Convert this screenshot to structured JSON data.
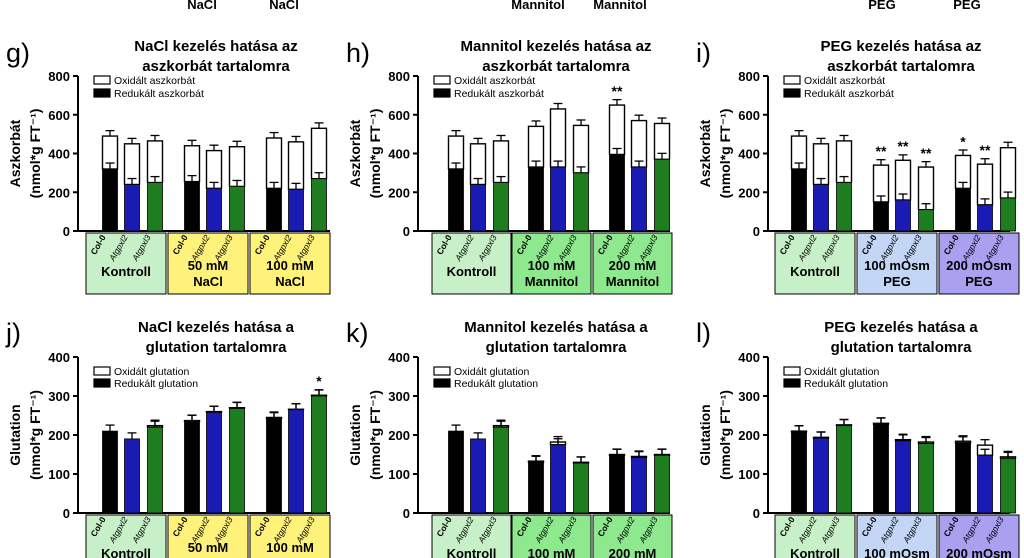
{
  "top_strip": [
    "NaCl",
    "NaCl",
    "Mannitol",
    "Mannitol",
    "PEG",
    "PEG"
  ],
  "legend_labels": {
    "asc_ox": "Oxidált aszkorbát",
    "asc_red": "Redukált aszkorbát",
    "glu_ox": "Oxidált glutation",
    "glu_red": "Redukált glutation"
  },
  "genotypes": [
    "Col-0",
    "Atgpxl2",
    "Atgpxl3"
  ],
  "colors": {
    "col0": "#000000",
    "atgpxl2": "#1a1ab4",
    "atgpxl3": "#1e7d1e",
    "oxidized": "#ffffff",
    "control_box": "#c8f0c8",
    "nacl_box": "#fff27a",
    "mannitol_box": "#8ee88e",
    "peg100_box": "#c3d6f5",
    "peg200_box": "#a9a1f0"
  },
  "chart_data": [
    {
      "id": "g",
      "type": "bar",
      "stacked": true,
      "panel_label": "g)",
      "title": [
        "NaCl kezelés hatása az",
        "aszkorbát tartalomra"
      ],
      "ylabel": [
        "Aszkorbát",
        "(nmol*g FT⁻¹)"
      ],
      "ylim": [
        0,
        800
      ],
      "yticks": [
        "0",
        "200",
        "400",
        "600",
        "800"
      ],
      "legend": [
        "asc_ox",
        "asc_red"
      ],
      "groups": [
        {
          "label": [
            "Kontroll"
          ],
          "color": "control_box"
        },
        {
          "label": [
            "50 mM",
            "NaCl"
          ],
          "color": "nacl_box"
        },
        {
          "label": [
            "100 mM",
            "NaCl"
          ],
          "color": "nacl_box"
        }
      ],
      "reduced": [
        [
          320,
          240,
          250
        ],
        [
          255,
          220,
          230
        ],
        [
          220,
          215,
          270
        ]
      ],
      "total": [
        [
          490,
          450,
          465
        ],
        [
          440,
          415,
          435
        ],
        [
          480,
          460,
          530
        ]
      ],
      "annotations": [
        [
          [],
          [],
          []
        ],
        [
          [],
          [],
          []
        ],
        [
          [],
          [],
          []
        ]
      ]
    },
    {
      "id": "h",
      "type": "bar",
      "stacked": true,
      "panel_label": "h)",
      "title": [
        "Mannitol kezelés hatása az",
        "aszkorbát tartalomra"
      ],
      "ylabel": [
        "Aszkorbát",
        "(nmol*g FT⁻¹)"
      ],
      "ylim": [
        0,
        800
      ],
      "yticks": [
        "0",
        "200",
        "400",
        "600",
        "800"
      ],
      "legend": [
        "asc_ox",
        "asc_red"
      ],
      "groups": [
        {
          "label": [
            "Kontroll"
          ],
          "color": "control_box"
        },
        {
          "label": [
            "100 mM",
            "Mannitol"
          ],
          "color": "mannitol_box"
        },
        {
          "label": [
            "200 mM",
            "Mannitol"
          ],
          "color": "mannitol_box"
        }
      ],
      "reduced": [
        [
          320,
          240,
          250
        ],
        [
          330,
          330,
          300
        ],
        [
          395,
          330,
          370
        ]
      ],
      "total": [
        [
          490,
          450,
          465
        ],
        [
          540,
          630,
          545
        ],
        [
          650,
          570,
          555
        ]
      ],
      "annotations": [
        [
          [],
          [],
          []
        ],
        [
          [],
          [],
          []
        ],
        [
          [
            "**"
          ],
          [],
          []
        ]
      ]
    },
    {
      "id": "i",
      "type": "bar",
      "stacked": true,
      "panel_label": "i)",
      "title": [
        "PEG kezelés hatása az",
        "aszkorbát tartalomra"
      ],
      "ylabel": [
        "Aszkorbát",
        "(nmol*g FT⁻¹)"
      ],
      "ylim": [
        0,
        800
      ],
      "yticks": [
        "0",
        "200",
        "400",
        "600",
        "800"
      ],
      "legend": [
        "asc_ox",
        "asc_red"
      ],
      "groups": [
        {
          "label": [
            "Kontroll"
          ],
          "color": "control_box"
        },
        {
          "label": [
            "100 mOsm",
            "PEG"
          ],
          "color": "peg100_box"
        },
        {
          "label": [
            "200 mOsm",
            "PEG"
          ],
          "color": "peg200_box"
        }
      ],
      "reduced": [
        [
          320,
          240,
          250
        ],
        [
          150,
          160,
          110
        ],
        [
          220,
          135,
          170
        ]
      ],
      "total": [
        [
          490,
          450,
          465
        ],
        [
          340,
          365,
          330
        ],
        [
          390,
          345,
          430
        ]
      ],
      "annotations": [
        [
          [],
          [],
          []
        ],
        [
          [
            "**"
          ],
          [
            "**"
          ],
          [
            "**"
          ]
        ],
        [
          [
            "*"
          ],
          [
            "**"
          ],
          []
        ]
      ]
    },
    {
      "id": "j",
      "type": "bar",
      "stacked": true,
      "panel_label": "j)",
      "title": [
        "NaCl kezelés hatása a",
        "glutation tartalomra"
      ],
      "ylabel": [
        "Glutation",
        "(nmol*g FT⁻¹)"
      ],
      "ylim": [
        0,
        400
      ],
      "yticks": [
        "0",
        "100",
        "200",
        "300",
        "400"
      ],
      "legend": [
        "glu_ox",
        "glu_red"
      ],
      "groups": [
        {
          "label": [
            "Kontroll"
          ],
          "color": "control_box"
        },
        {
          "label": [
            "50 mM",
            "NaCl"
          ],
          "color": "nacl_box"
        },
        {
          "label": [
            "100 mM",
            "NaCl"
          ],
          "color": "nacl_box"
        }
      ],
      "reduced": [
        [
          210,
          190,
          220
        ],
        [
          235,
          258,
          268
        ],
        [
          242,
          265,
          300
        ]
      ],
      "total": [
        [
          210,
          190,
          224
        ],
        [
          237,
          260,
          270
        ],
        [
          245,
          266,
          302
        ]
      ],
      "annotations": [
        [
          [],
          [],
          []
        ],
        [
          [],
          [],
          []
        ],
        [
          [],
          [],
          [
            "*"
          ]
        ]
      ]
    },
    {
      "id": "k",
      "type": "bar",
      "stacked": true,
      "panel_label": "k)",
      "title": [
        "Mannitol kezelés hatása a",
        "glutation tartalomra"
      ],
      "ylabel": [
        "Glutation",
        "(nmol*g FT⁻¹)"
      ],
      "ylim": [
        0,
        400
      ],
      "yticks": [
        "0",
        "100",
        "200",
        "300",
        "400"
      ],
      "legend": [
        "glu_ox",
        "glu_red"
      ],
      "groups": [
        {
          "label": [
            "Kontroll"
          ],
          "color": "control_box"
        },
        {
          "label": [
            "100 mM"
          ],
          "color": "mannitol_box"
        },
        {
          "label": [
            "200 mM"
          ],
          "color": "mannitol_box"
        }
      ],
      "reduced": [
        [
          210,
          190,
          220
        ],
        [
          130,
          175,
          128
        ],
        [
          148,
          142,
          148
        ]
      ],
      "total": [
        [
          210,
          190,
          224
        ],
        [
          133,
          182,
          130
        ],
        [
          150,
          145,
          150
        ]
      ],
      "annotations": [
        [
          [],
          [],
          []
        ],
        [
          [],
          [],
          []
        ],
        [
          [],
          [],
          []
        ]
      ]
    },
    {
      "id": "l",
      "type": "bar",
      "stacked": true,
      "panel_label": "l)",
      "title": [
        "PEG kezelés hatása a",
        "glutation tartalomra"
      ],
      "ylabel": [
        "Glutation",
        "(nmol*g FT⁻¹)"
      ],
      "ylim": [
        0,
        400
      ],
      "yticks": [
        "0",
        "100",
        "200",
        "300",
        "400"
      ],
      "legend": [
        "glu_ox",
        "glu_red"
      ],
      "groups": [
        {
          "label": [
            "Kontroll"
          ],
          "color": "control_box"
        },
        {
          "label": [
            "100 mOsm"
          ],
          "color": "peg100_box"
        },
        {
          "label": [
            "200 mOsm"
          ],
          "color": "peg200_box"
        }
      ],
      "reduced": [
        [
          208,
          192,
          224
        ],
        [
          228,
          185,
          178
        ],
        [
          180,
          148,
          140
        ]
      ],
      "total": [
        [
          210,
          194,
          226
        ],
        [
          230,
          188,
          182
        ],
        [
          184,
          174,
          144
        ]
      ],
      "annotations": [
        [
          [],
          [],
          []
        ],
        [
          [],
          [],
          []
        ],
        [
          [],
          [],
          []
        ]
      ]
    }
  ]
}
